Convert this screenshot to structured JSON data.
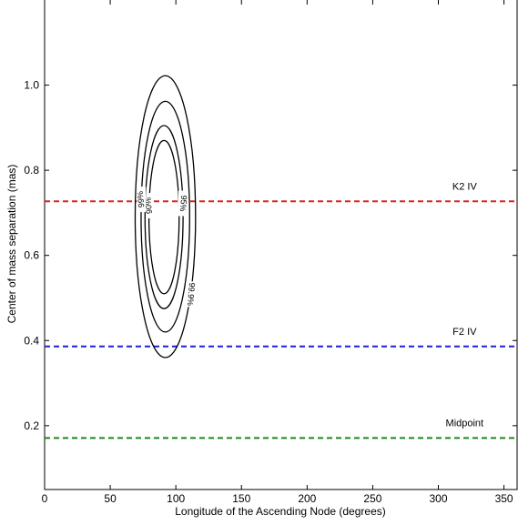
{
  "chart_data": {
    "type": "line",
    "title": "",
    "xlabel": "Longitude of the Ascending Node (degrees)",
    "ylabel": "Center of mass separation (mas)",
    "xlim": [
      0,
      360
    ],
    "ylim": [
      0.05,
      1.2
    ],
    "x_ticks": [
      0,
      50,
      100,
      150,
      200,
      250,
      300,
      350
    ],
    "y_ticks": [
      0.2,
      0.4,
      0.6,
      0.8,
      1.0
    ],
    "grid": false,
    "reference_lines": [
      {
        "name": "K2 IV",
        "y": 0.727,
        "color": "#e02020"
      },
      {
        "name": "F2 IV",
        "y": 0.386,
        "color": "#1f1fe0"
      },
      {
        "name": "Midpoint",
        "y": 0.171,
        "color": "#1a8a1a"
      }
    ],
    "confidence_contours": [
      {
        "level": "90%",
        "center_x": 91,
        "center_y": 0.69,
        "x_range": [
          80,
          103
        ],
        "y_range": [
          0.51,
          0.87
        ]
      },
      {
        "level": "95%",
        "center_x": 91,
        "center_y": 0.69,
        "x_range": [
          77,
          106
        ],
        "y_range": [
          0.475,
          0.905
        ]
      },
      {
        "level": "99%",
        "center_x": 92,
        "center_y": 0.69,
        "x_range": [
          73,
          110
        ],
        "y_range": [
          0.42,
          0.962
        ]
      },
      {
        "level": "99.9%",
        "center_x": 92,
        "center_y": 0.69,
        "x_range": [
          69,
          115
        ],
        "y_range": [
          0.36,
          1.022
        ]
      }
    ]
  }
}
